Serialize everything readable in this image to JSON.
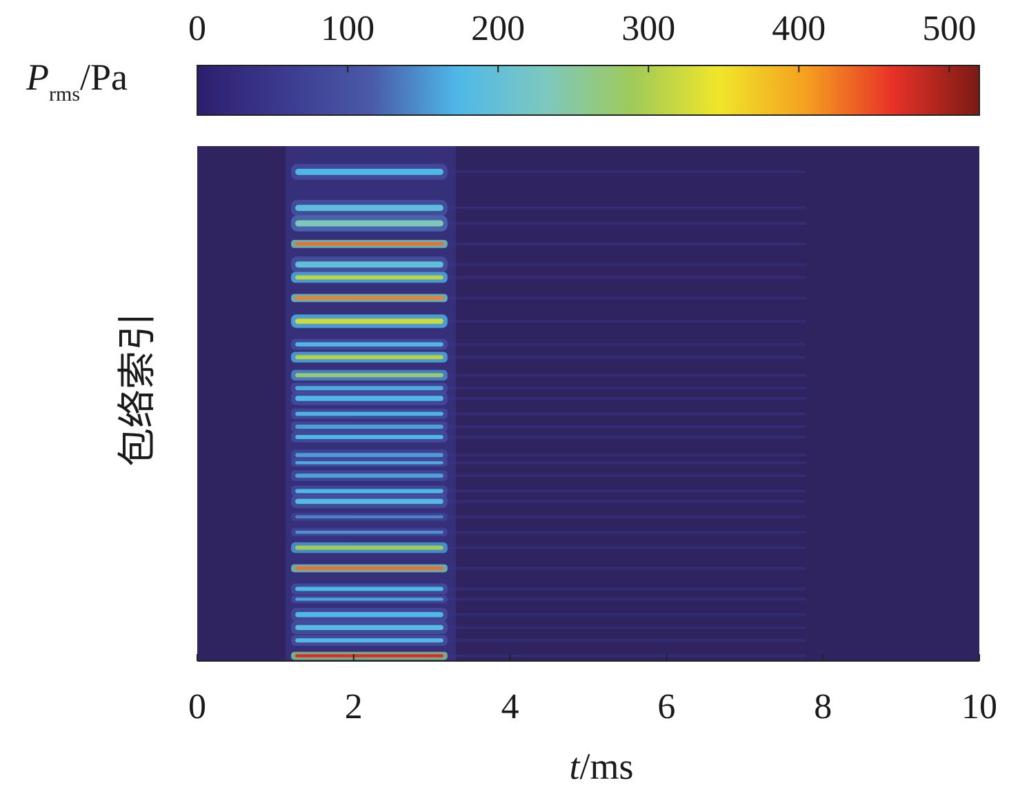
{
  "chart_data": {
    "type": "heatmap",
    "xlabel": {
      "italic": "t",
      "rest": "/ms"
    },
    "ylabel": "包络索引",
    "xlim": [
      0,
      10
    ],
    "xticks": [
      "0",
      "2",
      "4",
      "6",
      "8",
      "10"
    ],
    "colorbar": {
      "label": {
        "main": "P",
        "sub": "rms",
        "unit": "/Pa"
      },
      "range": [
        0,
        520
      ],
      "ticks": [
        "0",
        "100",
        "200",
        "300",
        "400",
        "500"
      ],
      "colormap": [
        "#2d1e6e",
        "#3b3a8f",
        "#4a5aa8",
        "#4fb8e8",
        "#7dc8c0",
        "#9fca5a",
        "#f0e62a",
        "#f5a020",
        "#e83228",
        "#7a1a14"
      ]
    },
    "background_value": 20,
    "activity_window_ms": [
      1.2,
      3.2
    ],
    "bands": [
      {
        "y": 0.05,
        "w": 0.012,
        "value": 175
      },
      {
        "y": 0.12,
        "w": 0.012,
        "value": 190
      },
      {
        "y": 0.15,
        "w": 0.012,
        "value": 235
      },
      {
        "y": 0.19,
        "w": 0.006,
        "value": 430
      },
      {
        "y": 0.23,
        "w": 0.012,
        "value": 195
      },
      {
        "y": 0.255,
        "w": 0.008,
        "value": 310
      },
      {
        "y": 0.295,
        "w": 0.006,
        "value": 420
      },
      {
        "y": 0.34,
        "w": 0.01,
        "value": 320
      },
      {
        "y": 0.385,
        "w": 0.008,
        "value": 175
      },
      {
        "y": 0.41,
        "w": 0.008,
        "value": 305
      },
      {
        "y": 0.445,
        "w": 0.008,
        "value": 270
      },
      {
        "y": 0.47,
        "w": 0.008,
        "value": 165
      },
      {
        "y": 0.49,
        "w": 0.01,
        "value": 175
      },
      {
        "y": 0.52,
        "w": 0.008,
        "value": 170
      },
      {
        "y": 0.545,
        "w": 0.008,
        "value": 160
      },
      {
        "y": 0.565,
        "w": 0.008,
        "value": 175
      },
      {
        "y": 0.6,
        "w": 0.008,
        "value": 155
      },
      {
        "y": 0.615,
        "w": 0.006,
        "value": 165
      },
      {
        "y": 0.64,
        "w": 0.008,
        "value": 160
      },
      {
        "y": 0.67,
        "w": 0.008,
        "value": 175
      },
      {
        "y": 0.69,
        "w": 0.01,
        "value": 180
      },
      {
        "y": 0.72,
        "w": 0.006,
        "value": 140
      },
      {
        "y": 0.75,
        "w": 0.006,
        "value": 150
      },
      {
        "y": 0.78,
        "w": 0.008,
        "value": 290
      },
      {
        "y": 0.82,
        "w": 0.006,
        "value": 430
      },
      {
        "y": 0.86,
        "w": 0.008,
        "value": 175
      },
      {
        "y": 0.88,
        "w": 0.006,
        "value": 160
      },
      {
        "y": 0.91,
        "w": 0.01,
        "value": 175
      },
      {
        "y": 0.935,
        "w": 0.01,
        "value": 185
      },
      {
        "y": 0.96,
        "w": 0.008,
        "value": 180
      },
      {
        "y": 0.99,
        "w": 0.006,
        "value": 470
      }
    ]
  }
}
